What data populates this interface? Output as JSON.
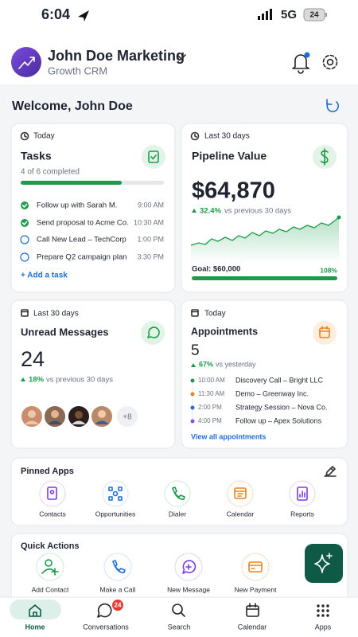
{
  "status_bar": {
    "time": "6:04",
    "network": "5G",
    "battery": "24"
  },
  "header": {
    "title": "John Doe Marketing",
    "subtitle": "Growth CRM"
  },
  "welcome": "Welcome, John Doe",
  "tasks_card": {
    "period": "Today",
    "title": "Tasks",
    "progress": "4 of 6 completed",
    "items": [
      {
        "text": "Follow up with Sarah M.",
        "time": "9:00 AM"
      },
      {
        "text": "Send proposal to Acme Co.",
        "time": "10:30 AM"
      },
      {
        "text": "Call New Lead – TechCorp",
        "time": "1:00 PM"
      },
      {
        "text": "Prepare Q2 campaign plan",
        "time": "3:30 PM"
      }
    ],
    "add": "+ Add a task"
  },
  "pipeline_card": {
    "period": "Last 30 days",
    "title": "Pipeline Value",
    "value": "$64,870",
    "change": "32.4%",
    "comparison": "vs previous 30 days",
    "goal": "Goal: $60,000",
    "goal_progress": "108%"
  },
  "messages_card": {
    "period": "Last 30 days",
    "title": "Unread Messages",
    "value": "24",
    "change": "18%",
    "comparison": "vs previous 30 days",
    "more_contacts": "+8"
  },
  "appointments_card": {
    "period": "Today",
    "title": "Appointments",
    "value": "5",
    "change": "67%",
    "comparison": "vs yesterday",
    "items": [
      {
        "time": "10:00 AM",
        "text": "Discovery Call – Bright LLC"
      },
      {
        "time": "11:30 AM",
        "text": "Demo – Greenway Inc."
      },
      {
        "time": "2:00 PM",
        "text": "Strategy Session – Nova Co."
      },
      {
        "time": "4:00 PM",
        "text": "Follow up – Apex Solutions"
      }
    ],
    "link": "View all appointments"
  },
  "pinned_apps": {
    "title": "Pinned Apps",
    "apps": [
      "Contacts",
      "Opportunities",
      "Dialer",
      "Calendar",
      "Reports"
    ]
  },
  "quick_actions": {
    "title": "Quick Actions",
    "actions": [
      "Add Contact",
      "Make a Call",
      "New Message",
      "New Payment"
    ]
  },
  "nav": {
    "items": [
      "Home",
      "Conversations",
      "Search",
      "Calendar",
      "Apps"
    ],
    "badge": "24"
  }
}
